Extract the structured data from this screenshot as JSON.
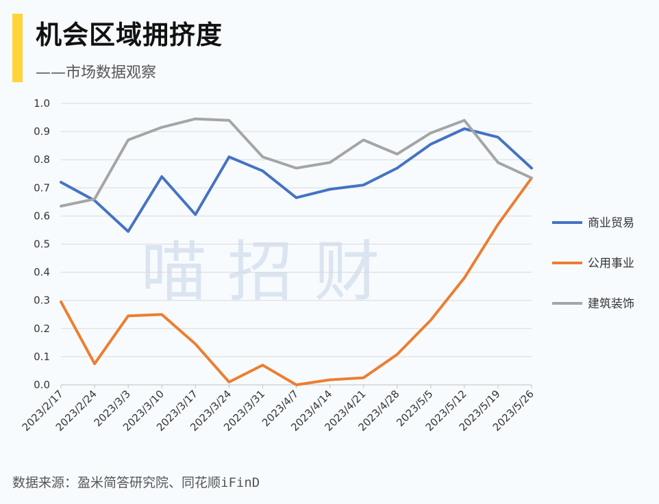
{
  "header": {
    "title": "机会区域拥挤度",
    "subtitle": "——市场数据观察"
  },
  "watermark": "喵 招 财",
  "source": "数据来源：盈米简答研究院、同花顺iFinD",
  "colors": {
    "accent": "#ffd43b"
  },
  "chart_data": {
    "type": "line",
    "categories": [
      "2023/2/17",
      "2023/2/24",
      "2023/3/3",
      "2023/3/10",
      "2023/3/17",
      "2023/3/24",
      "2023/3/31",
      "2023/4/7",
      "2023/4/14",
      "2023/4/21",
      "2023/4/28",
      "2023/5/5",
      "2023/5/12",
      "2023/5/19",
      "2023/5/26"
    ],
    "ylim": [
      0,
      1.0
    ],
    "yticks": [
      "0.0",
      "0.1",
      "0.2",
      "0.3",
      "0.4",
      "0.5",
      "0.6",
      "0.7",
      "0.8",
      "0.9",
      "1.0"
    ],
    "grid": true,
    "legend_position": "right",
    "series": [
      {
        "name": "商业贸易",
        "color": "#4472c4",
        "values": [
          0.72,
          0.655,
          0.545,
          0.74,
          0.605,
          0.81,
          0.76,
          0.665,
          0.695,
          0.71,
          0.77,
          0.855,
          0.91,
          0.88,
          0.77
        ]
      },
      {
        "name": "公用事业",
        "color": "#ed7d31",
        "values": [
          0.295,
          0.075,
          0.245,
          0.25,
          0.145,
          0.01,
          0.07,
          0.0,
          0.018,
          0.025,
          0.108,
          0.23,
          0.38,
          0.57,
          0.735
        ]
      },
      {
        "name": "建筑装饰",
        "color": "#a5a5a5",
        "values": [
          0.635,
          0.66,
          0.87,
          0.915,
          0.945,
          0.94,
          0.81,
          0.77,
          0.79,
          0.87,
          0.82,
          0.895,
          0.94,
          0.79,
          0.735
        ]
      }
    ]
  }
}
